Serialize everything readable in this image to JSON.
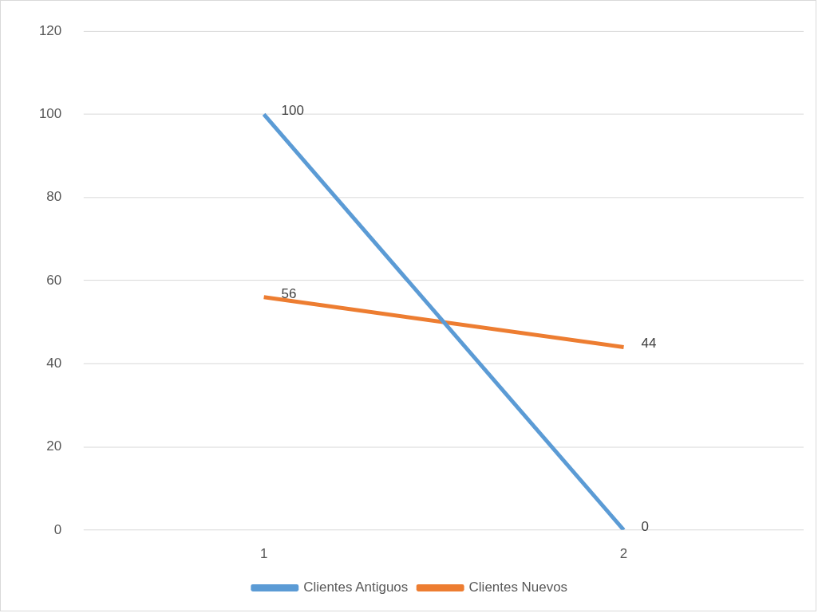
{
  "chart_data": {
    "type": "line",
    "categories": [
      "1",
      "2"
    ],
    "series": [
      {
        "name": "Clientes Antiguos",
        "color": "#5b9bd5",
        "values": [
          100,
          0
        ]
      },
      {
        "name": "Clientes Nuevos",
        "color": "#ed7d31",
        "values": [
          56,
          44
        ]
      }
    ],
    "ylim": [
      0,
      120
    ],
    "yticks": [
      0,
      20,
      40,
      60,
      80,
      100,
      120
    ],
    "grid": "y",
    "legend": "bottom",
    "marker": "none",
    "line_style": "solid",
    "data_labels": true
  }
}
